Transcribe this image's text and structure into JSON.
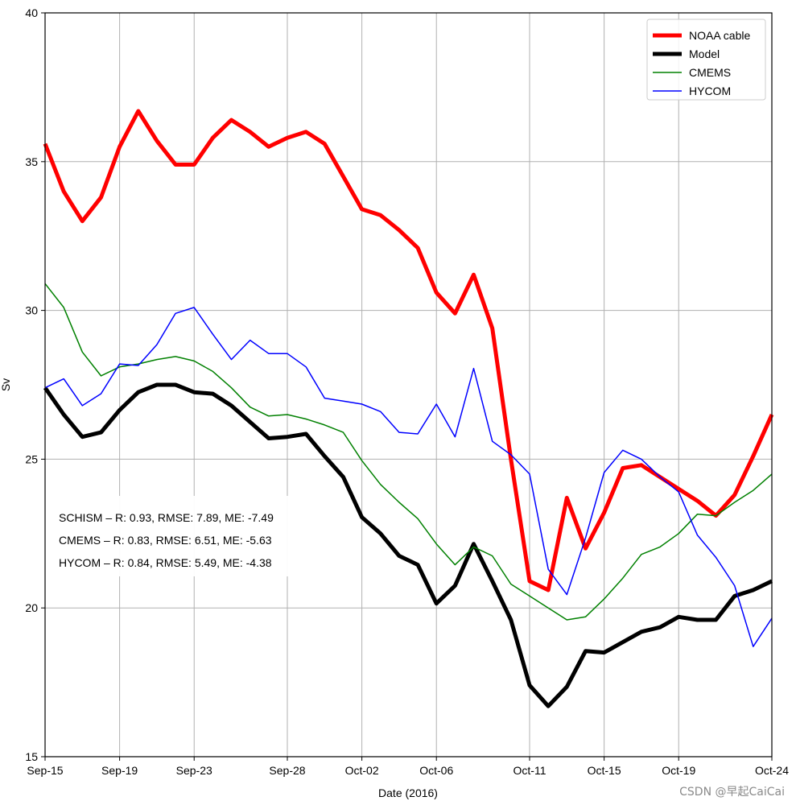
{
  "chart_data": {
    "type": "line",
    "title": "",
    "xlabel": "Date (2016)",
    "ylabel": "Sv",
    "ylim": [
      15,
      40
    ],
    "yticks": [
      15,
      20,
      25,
      30,
      35,
      40
    ],
    "xlim": [
      "2016-09-15",
      "2016-10-24"
    ],
    "xticks": [
      {
        "date": "2016-09-15",
        "label": "Sep-15"
      },
      {
        "date": "2016-09-19",
        "label": "Sep-19"
      },
      {
        "date": "2016-09-23",
        "label": "Sep-23"
      },
      {
        "date": "2016-09-28",
        "label": "Sep-28"
      },
      {
        "date": "2016-10-02",
        "label": "Oct-02"
      },
      {
        "date": "2016-10-06",
        "label": "Oct-06"
      },
      {
        "date": "2016-10-11",
        "label": "Oct-11"
      },
      {
        "date": "2016-10-15",
        "label": "Oct-15"
      },
      {
        "date": "2016-10-19",
        "label": "Oct-19"
      },
      {
        "date": "2016-10-24",
        "label": "Oct-24"
      }
    ],
    "grid": true,
    "legend_position": "top-right",
    "series": [
      {
        "name": "NOAA cable",
        "color": "#ff0000",
        "width": "thick",
        "x": [
          "2016-09-15",
          "2016-09-16",
          "2016-09-17",
          "2016-09-18",
          "2016-09-19",
          "2016-09-20",
          "2016-09-21",
          "2016-09-22",
          "2016-09-23",
          "2016-09-24",
          "2016-09-25",
          "2016-09-26",
          "2016-09-27",
          "2016-09-28",
          "2016-09-29",
          "2016-09-30",
          "2016-10-01",
          "2016-10-02",
          "2016-10-03",
          "2016-10-04",
          "2016-10-05",
          "2016-10-06",
          "2016-10-07",
          "2016-10-08",
          "2016-10-09",
          "2016-10-10",
          "2016-10-11",
          "2016-10-12",
          "2016-10-13",
          "2016-10-14",
          "2016-10-15",
          "2016-10-16",
          "2016-10-17",
          "2016-10-18",
          "2016-10-19",
          "2016-10-20",
          "2016-10-21",
          "2016-10-22",
          "2016-10-23",
          "2016-10-24"
        ],
        "y": [
          35.6,
          34.0,
          33.0,
          33.8,
          35.5,
          36.7,
          35.7,
          34.9,
          34.9,
          35.8,
          36.4,
          36.0,
          35.5,
          35.8,
          36.0,
          35.6,
          34.5,
          33.4,
          33.2,
          32.7,
          32.1,
          30.6,
          29.9,
          31.2,
          29.4,
          25.0,
          20.9,
          20.6,
          23.7,
          22.0,
          23.2,
          24.7,
          24.8,
          24.4,
          24.0,
          23.6,
          23.1,
          23.8,
          25.1,
          26.5
        ]
      },
      {
        "name": "Model",
        "color": "#000000",
        "width": "thick",
        "x": [
          "2016-09-15",
          "2016-09-16",
          "2016-09-17",
          "2016-09-18",
          "2016-09-19",
          "2016-09-20",
          "2016-09-21",
          "2016-09-22",
          "2016-09-23",
          "2016-09-24",
          "2016-09-25",
          "2016-09-26",
          "2016-09-27",
          "2016-09-28",
          "2016-09-29",
          "2016-09-30",
          "2016-10-01",
          "2016-10-02",
          "2016-10-03",
          "2016-10-04",
          "2016-10-05",
          "2016-10-06",
          "2016-10-07",
          "2016-10-08",
          "2016-10-09",
          "2016-10-10",
          "2016-10-11",
          "2016-10-12",
          "2016-10-13",
          "2016-10-14",
          "2016-10-15",
          "2016-10-16",
          "2016-10-17",
          "2016-10-18",
          "2016-10-19",
          "2016-10-20",
          "2016-10-21",
          "2016-10-22",
          "2016-10-23",
          "2016-10-24"
        ],
        "y": [
          27.4,
          26.5,
          25.75,
          25.9,
          26.65,
          27.25,
          27.5,
          27.5,
          27.25,
          27.2,
          26.8,
          26.25,
          25.7,
          25.75,
          25.85,
          25.1,
          24.4,
          23.05,
          22.5,
          21.75,
          21.45,
          20.15,
          20.75,
          22.15,
          20.9,
          19.6,
          17.4,
          16.7,
          17.35,
          18.55,
          18.5,
          18.85,
          19.2,
          19.35,
          19.7,
          19.6,
          19.6,
          20.4,
          20.6,
          20.9
        ]
      },
      {
        "name": "CMEMS",
        "color": "#008000",
        "width": "thin",
        "x": [
          "2016-09-15",
          "2016-09-16",
          "2016-09-17",
          "2016-09-18",
          "2016-09-19",
          "2016-09-20",
          "2016-09-21",
          "2016-09-22",
          "2016-09-23",
          "2016-09-24",
          "2016-09-25",
          "2016-09-26",
          "2016-09-27",
          "2016-09-28",
          "2016-09-29",
          "2016-09-30",
          "2016-10-01",
          "2016-10-02",
          "2016-10-03",
          "2016-10-04",
          "2016-10-05",
          "2016-10-06",
          "2016-10-07",
          "2016-10-08",
          "2016-10-09",
          "2016-10-10",
          "2016-10-11",
          "2016-10-12",
          "2016-10-13",
          "2016-10-14",
          "2016-10-15",
          "2016-10-16",
          "2016-10-17",
          "2016-10-18",
          "2016-10-19",
          "2016-10-20",
          "2016-10-21",
          "2016-10-22",
          "2016-10-23",
          "2016-10-24"
        ],
        "y": [
          30.9,
          30.1,
          28.6,
          27.8,
          28.1,
          28.2,
          28.35,
          28.45,
          28.3,
          27.95,
          27.4,
          26.75,
          26.45,
          26.5,
          26.35,
          26.15,
          25.9,
          24.95,
          24.15,
          23.55,
          23.0,
          22.15,
          21.45,
          22.05,
          21.75,
          20.8,
          20.4,
          20.0,
          19.6,
          19.7,
          20.3,
          21.0,
          21.8,
          22.05,
          22.5,
          23.15,
          23.1,
          23.55,
          23.95,
          24.5
        ]
      },
      {
        "name": "HYCOM",
        "color": "#0000ff",
        "width": "thin",
        "x": [
          "2016-09-15",
          "2016-09-16",
          "2016-09-17",
          "2016-09-18",
          "2016-09-19",
          "2016-09-20",
          "2016-09-21",
          "2016-09-22",
          "2016-09-23",
          "2016-09-24",
          "2016-09-25",
          "2016-09-26",
          "2016-09-27",
          "2016-09-28",
          "2016-09-29",
          "2016-09-30",
          "2016-10-01",
          "2016-10-02",
          "2016-10-03",
          "2016-10-04",
          "2016-10-05",
          "2016-10-06",
          "2016-10-07",
          "2016-10-08",
          "2016-10-09",
          "2016-10-10",
          "2016-10-11",
          "2016-10-12",
          "2016-10-13",
          "2016-10-14",
          "2016-10-15",
          "2016-10-16",
          "2016-10-17",
          "2016-10-18",
          "2016-10-19",
          "2016-10-20",
          "2016-10-21",
          "2016-10-22",
          "2016-10-23",
          "2016-10-24"
        ],
        "y": [
          27.4,
          27.7,
          26.8,
          27.2,
          28.2,
          28.15,
          28.85,
          29.9,
          30.1,
          29.2,
          28.35,
          29.0,
          28.55,
          28.55,
          28.1,
          27.05,
          26.95,
          26.85,
          26.6,
          25.9,
          25.85,
          26.85,
          25.75,
          28.05,
          25.6,
          25.15,
          24.5,
          21.3,
          20.45,
          22.35,
          24.55,
          25.3,
          25.0,
          24.4,
          23.9,
          22.45,
          21.7,
          20.75,
          18.7,
          19.65
        ]
      }
    ],
    "annotations": [
      "SCHISM – R: 0.93, RMSE: 7.89, ME: -7.49",
      "CMEMS – R: 0.83, RMSE: 6.51, ME: -5.63",
      "HYCOM – R: 0.84, RMSE: 5.49, ME: -4.38"
    ]
  },
  "watermark": "CSDN @早起CaiCai",
  "colors": {
    "grid": "#b0b0b0",
    "axis": "#000000",
    "background": "#ffffff"
  }
}
